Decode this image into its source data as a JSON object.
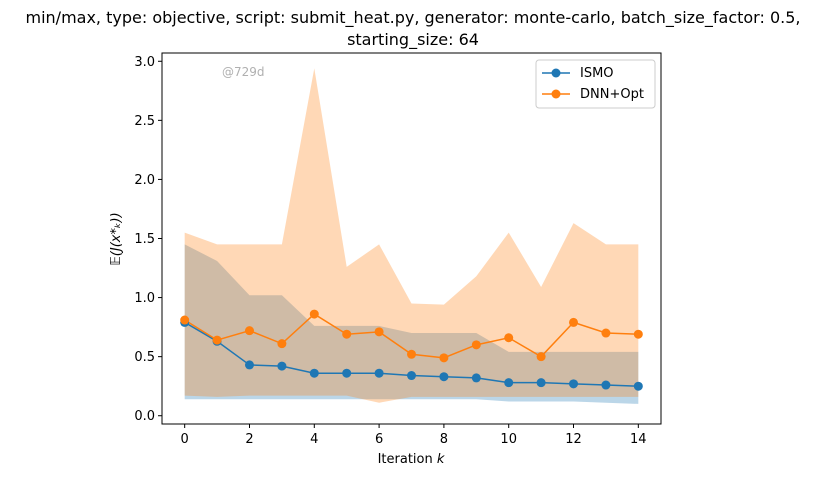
{
  "chart_data": {
    "type": "line",
    "title_line1": "min/max, type: objective, script: submit_heat.py, generator: monte-carlo, batch_size_factor: 0.5,",
    "title_line2": "starting_size: 64",
    "xlabel": "Iteration k",
    "ylabel": "𝔼(J(x*ₖ))",
    "watermark": "@729d",
    "xlim": [
      -0.7,
      14.7
    ],
    "ylim": [
      -0.07,
      3.07
    ],
    "x_ticks": [
      0,
      2,
      4,
      6,
      8,
      10,
      12,
      14
    ],
    "y_ticks": [
      0.0,
      0.5,
      1.0,
      1.5,
      2.0,
      2.5,
      3.0
    ],
    "y_tick_labels": [
      "0.0",
      "0.5",
      "1.0",
      "1.5",
      "2.0",
      "2.5",
      "3.0"
    ],
    "x": [
      0,
      1,
      2,
      3,
      4,
      5,
      6,
      7,
      8,
      9,
      10,
      11,
      12,
      13,
      14
    ],
    "legend_position": "top-right",
    "series": [
      {
        "name": "ISMO",
        "color": "#1f77b4",
        "values": [
          0.79,
          0.63,
          0.43,
          0.42,
          0.36,
          0.36,
          0.36,
          0.34,
          0.33,
          0.32,
          0.28,
          0.28,
          0.27,
          0.26,
          0.25
        ],
        "band_min": [
          0.14,
          0.14,
          0.14,
          0.14,
          0.14,
          0.14,
          0.14,
          0.14,
          0.14,
          0.14,
          0.12,
          0.12,
          0.12,
          0.11,
          0.1
        ],
        "band_max": [
          1.45,
          1.31,
          1.02,
          1.02,
          0.76,
          0.76,
          0.76,
          0.7,
          0.7,
          0.7,
          0.54,
          0.54,
          0.54,
          0.54,
          0.54
        ]
      },
      {
        "name": "DNN+Opt",
        "color": "#ff7f0e",
        "values": [
          0.81,
          0.64,
          0.72,
          0.61,
          0.86,
          0.69,
          0.71,
          0.52,
          0.49,
          0.6,
          0.66,
          0.5,
          0.79,
          0.7,
          0.69
        ],
        "band_min": [
          0.17,
          0.16,
          0.17,
          0.17,
          0.17,
          0.17,
          0.11,
          0.16,
          0.16,
          0.16,
          0.16,
          0.16,
          0.16,
          0.16,
          0.16
        ],
        "band_max": [
          1.55,
          1.45,
          1.45,
          1.45,
          2.94,
          1.26,
          1.45,
          0.95,
          0.94,
          1.18,
          1.55,
          1.09,
          1.63,
          1.45,
          1.45
        ]
      }
    ]
  }
}
